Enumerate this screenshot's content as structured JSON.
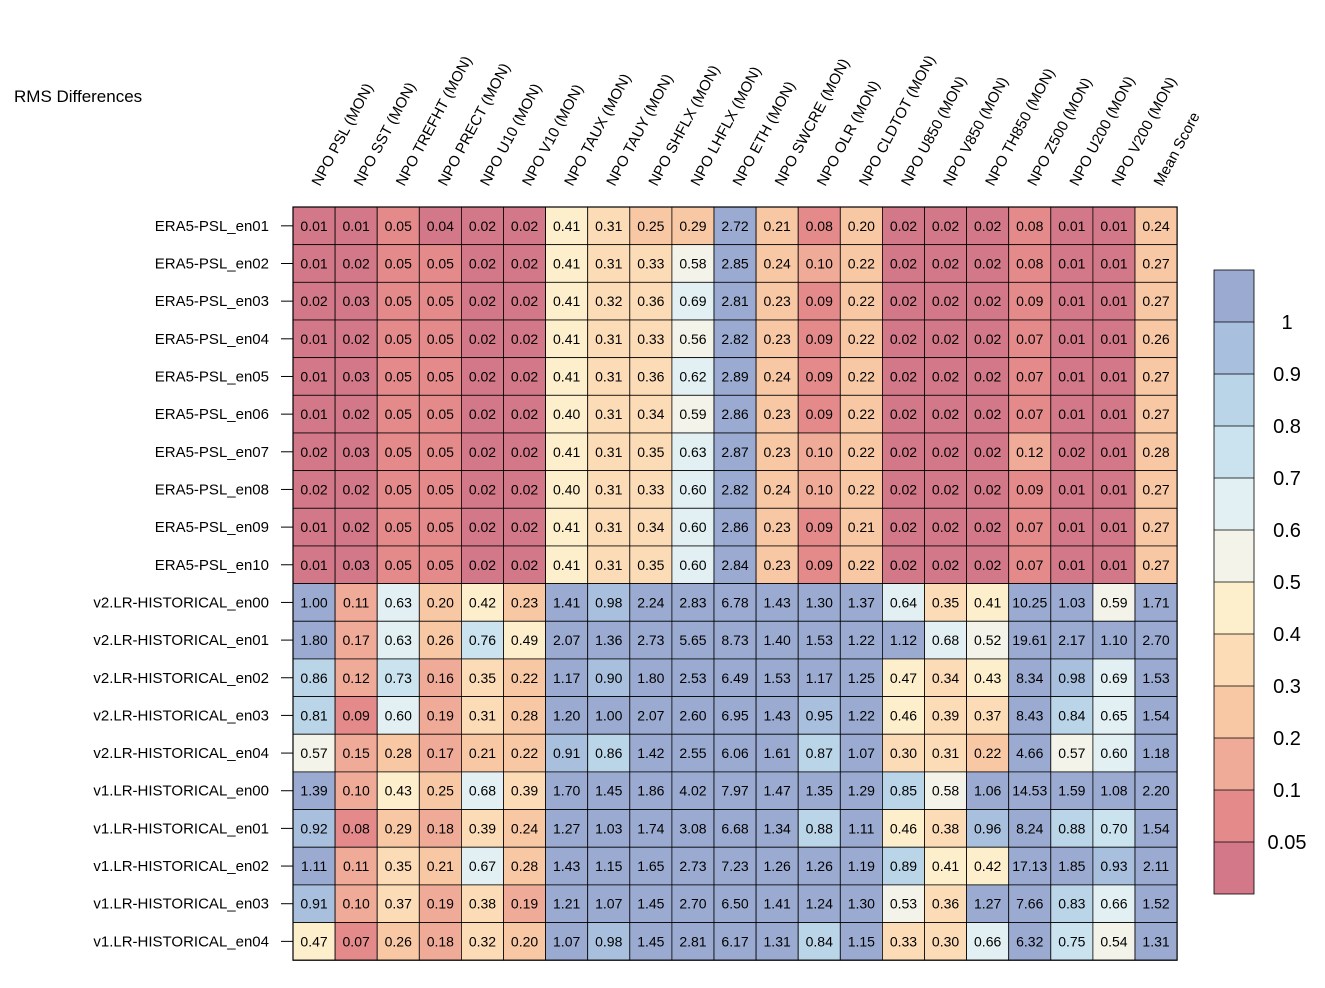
{
  "chart_data": {
    "type": "heatmap",
    "title": "RMS Differences",
    "columns": [
      "NPO PSL (MON)",
      "NPO SST (MON)",
      "NPO TREFHT (MON)",
      "NPO PRECT (MON)",
      "NPO U10 (MON)",
      "NPO V10 (MON)",
      "NPO TAUX (MON)",
      "NPO TAUY (MON)",
      "NPO SHFLX (MON)",
      "NPO LHFLX (MON)",
      "NPO ETH (MON)",
      "NPO SWCRE (MON)",
      "NPO OLR (MON)",
      "NPO CLDTOT (MON)",
      "NPO U850 (MON)",
      "NPO V850 (MON)",
      "NPO TH850 (MON)",
      "NPO Z500 (MON)",
      "NPO U200 (MON)",
      "NPO V200 (MON)",
      "Mean Score"
    ],
    "rows": [
      "ERA5-PSL_en01",
      "ERA5-PSL_en02",
      "ERA5-PSL_en03",
      "ERA5-PSL_en04",
      "ERA5-PSL_en05",
      "ERA5-PSL_en06",
      "ERA5-PSL_en07",
      "ERA5-PSL_en08",
      "ERA5-PSL_en09",
      "ERA5-PSL_en10",
      "v2.LR-HISTORICAL_en00",
      "v2.LR-HISTORICAL_en01",
      "v2.LR-HISTORICAL_en02",
      "v2.LR-HISTORICAL_en03",
      "v2.LR-HISTORICAL_en04",
      "v1.LR-HISTORICAL_en00",
      "v1.LR-HISTORICAL_en01",
      "v1.LR-HISTORICAL_en02",
      "v1.LR-HISTORICAL_en03",
      "v1.LR-HISTORICAL_en04"
    ],
    "values": [
      [
        "0.01",
        "0.01",
        "0.05",
        "0.04",
        "0.02",
        "0.02",
        "0.41",
        "0.31",
        "0.25",
        "0.29",
        "2.72",
        "0.21",
        "0.08",
        "0.20",
        "0.02",
        "0.02",
        "0.02",
        "0.08",
        "0.01",
        "0.01",
        "0.24"
      ],
      [
        "0.01",
        "0.02",
        "0.05",
        "0.05",
        "0.02",
        "0.02",
        "0.41",
        "0.31",
        "0.33",
        "0.58",
        "2.85",
        "0.24",
        "0.10",
        "0.22",
        "0.02",
        "0.02",
        "0.02",
        "0.08",
        "0.01",
        "0.01",
        "0.27"
      ],
      [
        "0.02",
        "0.03",
        "0.05",
        "0.05",
        "0.02",
        "0.02",
        "0.41",
        "0.32",
        "0.36",
        "0.69",
        "2.81",
        "0.23",
        "0.09",
        "0.22",
        "0.02",
        "0.02",
        "0.02",
        "0.09",
        "0.01",
        "0.01",
        "0.27"
      ],
      [
        "0.01",
        "0.02",
        "0.05",
        "0.05",
        "0.02",
        "0.02",
        "0.41",
        "0.31",
        "0.33",
        "0.56",
        "2.82",
        "0.23",
        "0.09",
        "0.22",
        "0.02",
        "0.02",
        "0.02",
        "0.07",
        "0.01",
        "0.01",
        "0.26"
      ],
      [
        "0.01",
        "0.03",
        "0.05",
        "0.05",
        "0.02",
        "0.02",
        "0.41",
        "0.31",
        "0.36",
        "0.62",
        "2.89",
        "0.24",
        "0.09",
        "0.22",
        "0.02",
        "0.02",
        "0.02",
        "0.07",
        "0.01",
        "0.01",
        "0.27"
      ],
      [
        "0.01",
        "0.02",
        "0.05",
        "0.05",
        "0.02",
        "0.02",
        "0.40",
        "0.31",
        "0.34",
        "0.59",
        "2.86",
        "0.23",
        "0.09",
        "0.22",
        "0.02",
        "0.02",
        "0.02",
        "0.07",
        "0.01",
        "0.01",
        "0.27"
      ],
      [
        "0.02",
        "0.03",
        "0.05",
        "0.05",
        "0.02",
        "0.02",
        "0.41",
        "0.31",
        "0.35",
        "0.63",
        "2.87",
        "0.23",
        "0.10",
        "0.22",
        "0.02",
        "0.02",
        "0.02",
        "0.12",
        "0.02",
        "0.01",
        "0.28"
      ],
      [
        "0.02",
        "0.02",
        "0.05",
        "0.05",
        "0.02",
        "0.02",
        "0.40",
        "0.31",
        "0.33",
        "0.60",
        "2.82",
        "0.24",
        "0.10",
        "0.22",
        "0.02",
        "0.02",
        "0.02",
        "0.09",
        "0.01",
        "0.01",
        "0.27"
      ],
      [
        "0.01",
        "0.02",
        "0.05",
        "0.05",
        "0.02",
        "0.02",
        "0.41",
        "0.31",
        "0.34",
        "0.60",
        "2.86",
        "0.23",
        "0.09",
        "0.21",
        "0.02",
        "0.02",
        "0.02",
        "0.07",
        "0.01",
        "0.01",
        "0.27"
      ],
      [
        "0.01",
        "0.03",
        "0.05",
        "0.05",
        "0.02",
        "0.02",
        "0.41",
        "0.31",
        "0.35",
        "0.60",
        "2.84",
        "0.23",
        "0.09",
        "0.22",
        "0.02",
        "0.02",
        "0.02",
        "0.07",
        "0.01",
        "0.01",
        "0.27"
      ],
      [
        "1.00",
        "0.11",
        "0.63",
        "0.20",
        "0.42",
        "0.23",
        "1.41",
        "0.98",
        "2.24",
        "2.83",
        "6.78",
        "1.43",
        "1.30",
        "1.37",
        "0.64",
        "0.35",
        "0.41",
        "10.25",
        "1.03",
        "0.59",
        "1.71"
      ],
      [
        "1.80",
        "0.17",
        "0.63",
        "0.26",
        "0.76",
        "0.49",
        "2.07",
        "1.36",
        "2.73",
        "5.65",
        "8.73",
        "1.40",
        "1.53",
        "1.22",
        "1.12",
        "0.68",
        "0.52",
        "19.61",
        "2.17",
        "1.10",
        "2.70"
      ],
      [
        "0.86",
        "0.12",
        "0.73",
        "0.16",
        "0.35",
        "0.22",
        "1.17",
        "0.90",
        "1.80",
        "2.53",
        "6.49",
        "1.53",
        "1.17",
        "1.25",
        "0.47",
        "0.34",
        "0.43",
        "8.34",
        "0.98",
        "0.69",
        "1.53"
      ],
      [
        "0.81",
        "0.09",
        "0.60",
        "0.19",
        "0.31",
        "0.28",
        "1.20",
        "1.00",
        "2.07",
        "2.60",
        "6.95",
        "1.43",
        "0.95",
        "1.22",
        "0.46",
        "0.39",
        "0.37",
        "8.43",
        "0.84",
        "0.65",
        "1.54"
      ],
      [
        "0.57",
        "0.15",
        "0.28",
        "0.17",
        "0.21",
        "0.22",
        "0.91",
        "0.86",
        "1.42",
        "2.55",
        "6.06",
        "1.61",
        "0.87",
        "1.07",
        "0.30",
        "0.31",
        "0.22",
        "4.66",
        "0.57",
        "0.60",
        "1.18"
      ],
      [
        "1.39",
        "0.10",
        "0.43",
        "0.25",
        "0.68",
        "0.39",
        "1.70",
        "1.45",
        "1.86",
        "4.02",
        "7.97",
        "1.47",
        "1.35",
        "1.29",
        "0.85",
        "0.58",
        "1.06",
        "14.53",
        "1.59",
        "1.08",
        "2.20"
      ],
      [
        "0.92",
        "0.08",
        "0.29",
        "0.18",
        "0.39",
        "0.24",
        "1.27",
        "1.03",
        "1.74",
        "3.08",
        "6.68",
        "1.34",
        "0.88",
        "1.11",
        "0.46",
        "0.38",
        "0.96",
        "8.24",
        "0.88",
        "0.70",
        "1.54"
      ],
      [
        "1.11",
        "0.11",
        "0.35",
        "0.21",
        "0.67",
        "0.28",
        "1.43",
        "1.15",
        "1.65",
        "2.73",
        "7.23",
        "1.26",
        "1.26",
        "1.19",
        "0.89",
        "0.41",
        "0.42",
        "17.13",
        "1.85",
        "0.93",
        "2.11"
      ],
      [
        "0.91",
        "0.10",
        "0.37",
        "0.19",
        "0.38",
        "0.19",
        "1.21",
        "1.07",
        "1.45",
        "2.70",
        "6.50",
        "1.41",
        "1.24",
        "1.30",
        "0.53",
        "0.36",
        "1.27",
        "7.66",
        "0.83",
        "0.66",
        "1.52"
      ],
      [
        "0.47",
        "0.07",
        "0.26",
        "0.18",
        "0.32",
        "0.20",
        "1.07",
        "0.98",
        "1.45",
        "2.81",
        "6.17",
        "1.31",
        "0.84",
        "1.15",
        "0.33",
        "0.30",
        "0.66",
        "6.32",
        "0.75",
        "0.54",
        "1.31"
      ]
    ],
    "colorbar": {
      "labels": [
        "1",
        "0.9",
        "0.8",
        "0.7",
        "0.6",
        "0.5",
        "0.4",
        "0.3",
        "0.2",
        "0.1",
        "0.05"
      ],
      "bins_top_to_bottom": [
        {
          "min": 1.0,
          "color": "#9AAAD0"
        },
        {
          "min": 0.9,
          "color": "#A8C0DD"
        },
        {
          "min": 0.8,
          "color": "#BAD4E8"
        },
        {
          "min": 0.7,
          "color": "#CAE3EF"
        },
        {
          "min": 0.6,
          "color": "#E2F0F4"
        },
        {
          "min": 0.5,
          "color": "#F3F3EA"
        },
        {
          "min": 0.4,
          "color": "#FDEFCB"
        },
        {
          "min": 0.3,
          "color": "#FCDCB6"
        },
        {
          "min": 0.2,
          "color": "#F8C8A5"
        },
        {
          "min": 0.1,
          "color": "#F0AB98"
        },
        {
          "min": 0.05,
          "color": "#E48A8A"
        },
        {
          "min": 0.0,
          "color": "#D27889"
        }
      ]
    }
  }
}
